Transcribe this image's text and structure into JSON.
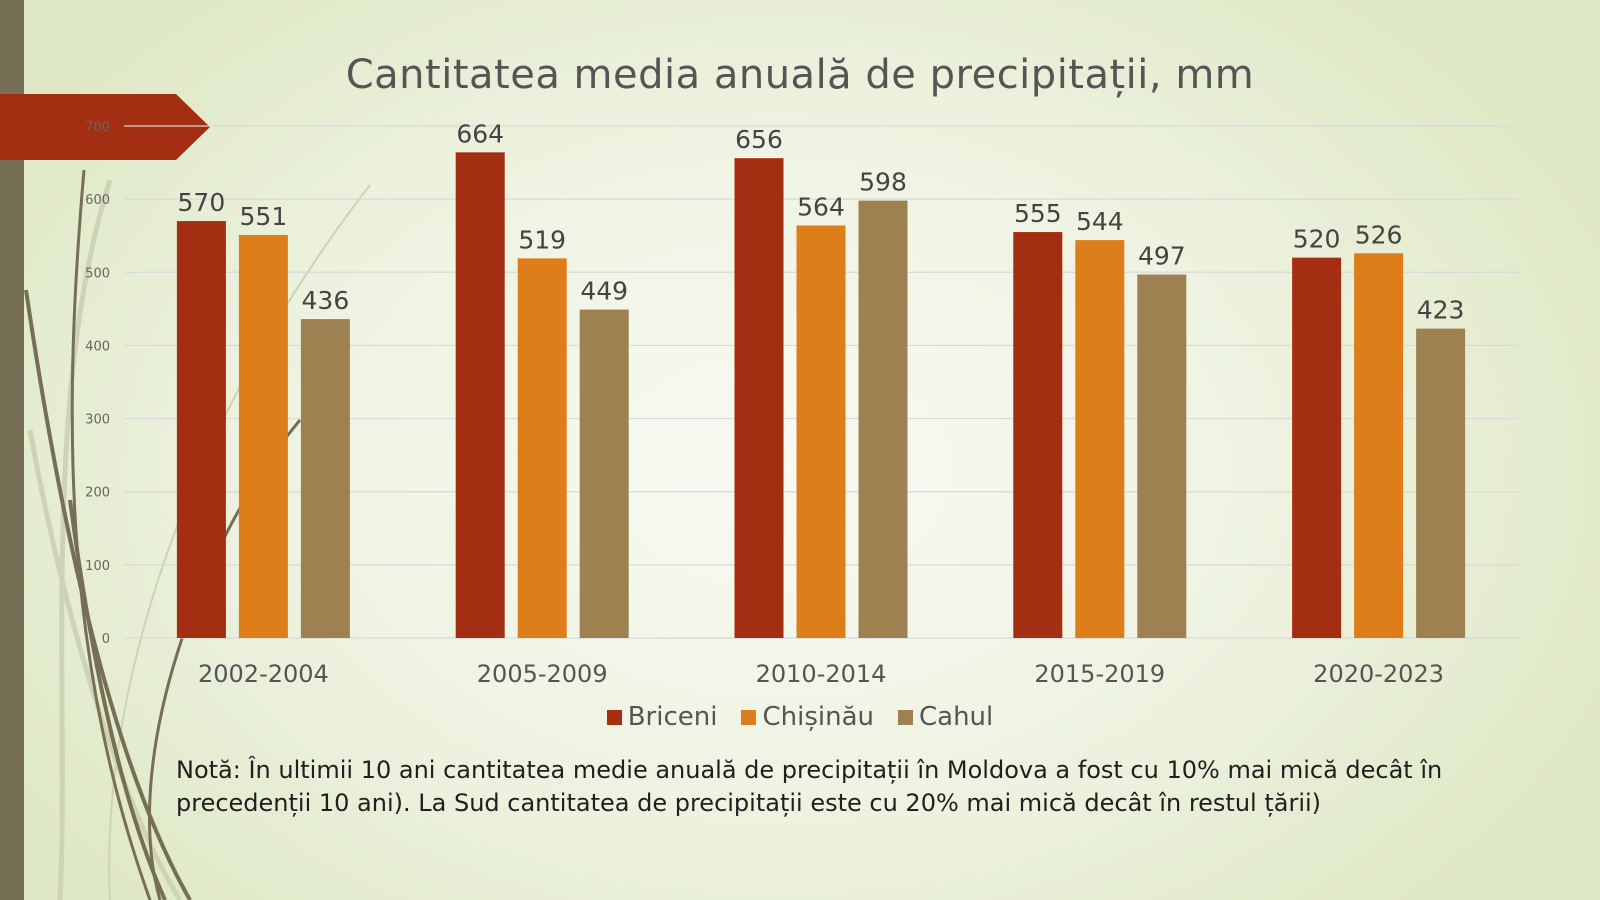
{
  "chart_data": {
    "type": "bar",
    "title": "Cantitatea media anuală de precipitații, mm",
    "xlabel": "",
    "ylabel": "",
    "ylim": [
      0,
      700
    ],
    "yticks": [
      0,
      100,
      200,
      300,
      400,
      500,
      600,
      700
    ],
    "grid": true,
    "legend_position": "bottom",
    "categories": [
      "2002-2004",
      "2005-2009",
      "2010-2014",
      "2015-2019",
      "2020-2023"
    ],
    "series": [
      {
        "name": "Briceni",
        "color": "#a32e12",
        "values": [
          570,
          664,
          656,
          555,
          520
        ]
      },
      {
        "name": "Chișinău",
        "color": "#de7e1a",
        "values": [
          551,
          519,
          564,
          544,
          526
        ]
      },
      {
        "name": "Cahul",
        "color": "#9e8151",
        "values": [
          436,
          449,
          598,
          497,
          423
        ]
      }
    ],
    "data_labels": true
  },
  "note": {
    "line1": "Notă: În ultimii 10 ani cantitatea medie anuală de precipitații în Moldova a fost cu 10% mai mică decât în",
    "line2": "precedenții 10 ani). La Sud cantitatea de precipitații este cu 20% mai mică decât în restul țării)"
  },
  "theme": {
    "accent": "#a32e12",
    "sidebar": "#766e55"
  }
}
